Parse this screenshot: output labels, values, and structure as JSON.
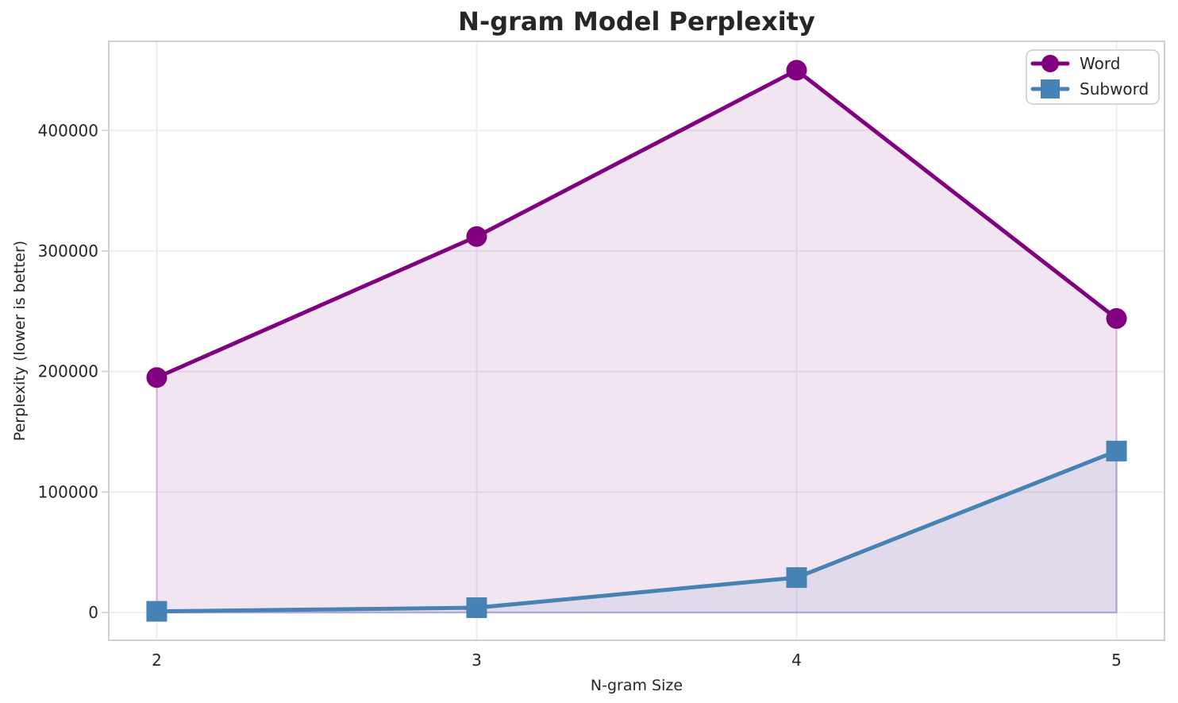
{
  "chart_data": {
    "type": "line",
    "title": "N-gram Model Perplexity",
    "xlabel": "N-gram Size",
    "ylabel": "Perplexity (lower is better)",
    "x": [
      2,
      3,
      4,
      5
    ],
    "x_tick_labels": [
      "2",
      "3",
      "4",
      "5"
    ],
    "y_ticks": [
      0,
      100000,
      200000,
      300000,
      400000
    ],
    "y_tick_labels": [
      "0",
      "100000",
      "200000",
      "300000",
      "400000"
    ],
    "xlim": [
      1.85,
      5.15
    ],
    "ylim": [
      -23000,
      474000
    ],
    "grid": true,
    "legend_position": "upper right",
    "fill_alpha": 0.1,
    "series": [
      {
        "name": "Word",
        "marker": "circle",
        "color": "#800080",
        "values": [
          195000,
          312000,
          450000,
          244000
        ]
      },
      {
        "name": "Subword",
        "marker": "square",
        "color": "#4682B4",
        "values": [
          1000,
          4000,
          29000,
          134000
        ]
      }
    ]
  },
  "colors": {
    "text": "#262626",
    "gridline": "#ececec",
    "spine": "#cfcfcf",
    "legend_border": "#cccccc",
    "background": "#ffffff"
  }
}
